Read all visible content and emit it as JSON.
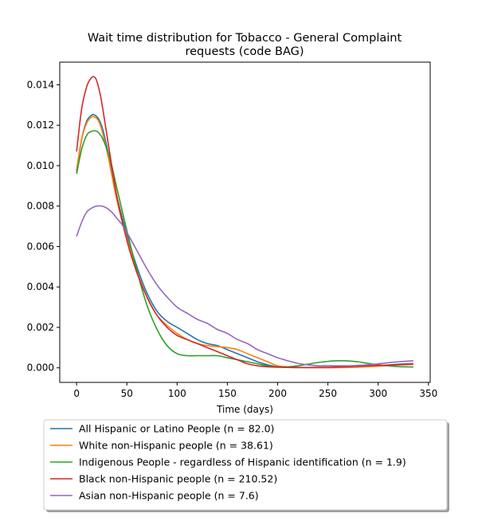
{
  "chart_data": {
    "type": "line",
    "title": "Wait time distribution  for Tobacco - General Complaint\nrequests (code BAG)",
    "xlabel": "Time (days)",
    "ylabel": "",
    "xlim": [
      -16.75,
      351.75
    ],
    "ylim": [
      -0.00072,
      0.01512
    ],
    "xticks": [
      0,
      50,
      100,
      150,
      200,
      250,
      300,
      350
    ],
    "yticks": [
      0.0,
      0.002,
      0.004,
      0.006,
      0.008,
      0.01,
      0.012,
      0.014
    ],
    "ytick_labels": [
      "0.000",
      "0.002",
      "0.004",
      "0.006",
      "0.008",
      "0.010",
      "0.012",
      "0.014"
    ],
    "grid": false,
    "legend_position": "bottom-outside",
    "series": [
      {
        "name": "All Hispanic or Latino People (n = 82.0)",
        "color": "#1f77b4",
        "x": [
          0,
          5,
          10,
          15,
          18,
          22,
          26,
          32,
          40,
          50,
          60,
          70,
          80,
          90,
          100,
          110,
          120,
          130,
          140,
          150,
          160,
          170,
          180,
          190,
          200,
          210,
          220,
          240,
          260,
          280,
          300,
          320,
          335
        ],
        "y": [
          0.0097,
          0.0113,
          0.0122,
          0.0125,
          0.0125,
          0.0123,
          0.0118,
          0.0105,
          0.0085,
          0.0066,
          0.005,
          0.0037,
          0.0028,
          0.0023,
          0.002,
          0.0017,
          0.0014,
          0.0012,
          0.0011,
          0.0009,
          0.0007,
          0.0005,
          0.0003,
          0.00015,
          5e-05,
          2e-05,
          1e-05,
          1e-05,
          2e-05,
          5e-05,
          0.0001,
          0.00018,
          0.00022
        ]
      },
      {
        "name": "White non-Hispanic people (n = 38.61)",
        "color": "#ff7f0e",
        "x": [
          0,
          5,
          10,
          15,
          18,
          22,
          26,
          32,
          40,
          50,
          60,
          70,
          80,
          90,
          100,
          110,
          120,
          130,
          140,
          150,
          160,
          170,
          180,
          190,
          200,
          210,
          220,
          240,
          260,
          280,
          300,
          320,
          335
        ],
        "y": [
          0.0098,
          0.0113,
          0.0121,
          0.0124,
          0.0124,
          0.0122,
          0.0116,
          0.0103,
          0.0083,
          0.0064,
          0.0048,
          0.0035,
          0.0026,
          0.0021,
          0.0017,
          0.0014,
          0.0012,
          0.0011,
          0.00105,
          0.001,
          0.0009,
          0.0007,
          0.0005,
          0.0003,
          0.0001,
          5e-05,
          2e-05,
          1e-05,
          1e-05,
          3e-05,
          8e-05,
          0.00015,
          0.0002
        ]
      },
      {
        "name": "Indigenous People - regardless of Hispanic identification (n = 1.9)",
        "color": "#2ca02c",
        "x": [
          0,
          5,
          10,
          15,
          20,
          24,
          28,
          34,
          40,
          50,
          60,
          70,
          80,
          90,
          100,
          110,
          120,
          130,
          140,
          150,
          160,
          170,
          180,
          190,
          200,
          210,
          220,
          230,
          240,
          250,
          260,
          265,
          270,
          280,
          290,
          300,
          310,
          320,
          335
        ],
        "y": [
          0.0096,
          0.0108,
          0.0115,
          0.0117,
          0.0117,
          0.0115,
          0.0111,
          0.0102,
          0.0089,
          0.0068,
          0.0048,
          0.0031,
          0.0019,
          0.0011,
          0.0007,
          0.0006,
          0.0006,
          0.0006,
          0.0006,
          0.0005,
          0.0004,
          0.0003,
          0.0002,
          0.0001,
          5e-05,
          5e-05,
          0.0001,
          0.00018,
          0.00026,
          0.00032,
          0.00035,
          0.00035,
          0.00034,
          0.0003,
          0.00022,
          0.00015,
          0.0001,
          6e-05,
          4e-05
        ]
      },
      {
        "name": "Black non-Hispanic people (n = 210.52)",
        "color": "#d62728",
        "x": [
          0,
          5,
          10,
          14,
          17,
          20,
          24,
          28,
          34,
          40,
          50,
          60,
          70,
          80,
          90,
          100,
          110,
          120,
          130,
          140,
          150,
          160,
          170,
          180,
          190,
          200,
          220,
          240,
          260,
          280,
          300,
          320,
          335
        ],
        "y": [
          0.0107,
          0.0128,
          0.0139,
          0.0143,
          0.0144,
          0.0142,
          0.0134,
          0.0122,
          0.0103,
          0.0085,
          0.0063,
          0.0047,
          0.0035,
          0.0026,
          0.002,
          0.0016,
          0.0014,
          0.0012,
          0.001,
          0.0008,
          0.0006,
          0.0004,
          0.0002,
          0.0001,
          5e-05,
          3e-05,
          2e-05,
          2e-05,
          4e-05,
          8e-05,
          0.00012,
          0.00015,
          0.00017
        ]
      },
      {
        "name": "Asian non-Hispanic people (n = 7.6)",
        "color": "#9467bd",
        "x": [
          0,
          5,
          10,
          15,
          20,
          25,
          30,
          35,
          40,
          45,
          50,
          60,
          70,
          80,
          90,
          100,
          110,
          120,
          130,
          140,
          150,
          160,
          170,
          180,
          190,
          200,
          210,
          220,
          230,
          240,
          250,
          260,
          270,
          280,
          290,
          300,
          310,
          320,
          335
        ],
        "y": [
          0.0065,
          0.0072,
          0.0077,
          0.0079,
          0.008,
          0.008,
          0.0079,
          0.0077,
          0.0074,
          0.0071,
          0.0067,
          0.0058,
          0.0049,
          0.0041,
          0.0035,
          0.003,
          0.0027,
          0.0024,
          0.0022,
          0.0019,
          0.0017,
          0.0014,
          0.0012,
          0.0009,
          0.0007,
          0.0005,
          0.00035,
          0.00022,
          0.00015,
          0.0001,
          0.0001,
          0.0001,
          0.0001,
          0.00012,
          0.00015,
          0.0002,
          0.00025,
          0.0003,
          0.00035
        ]
      }
    ]
  }
}
